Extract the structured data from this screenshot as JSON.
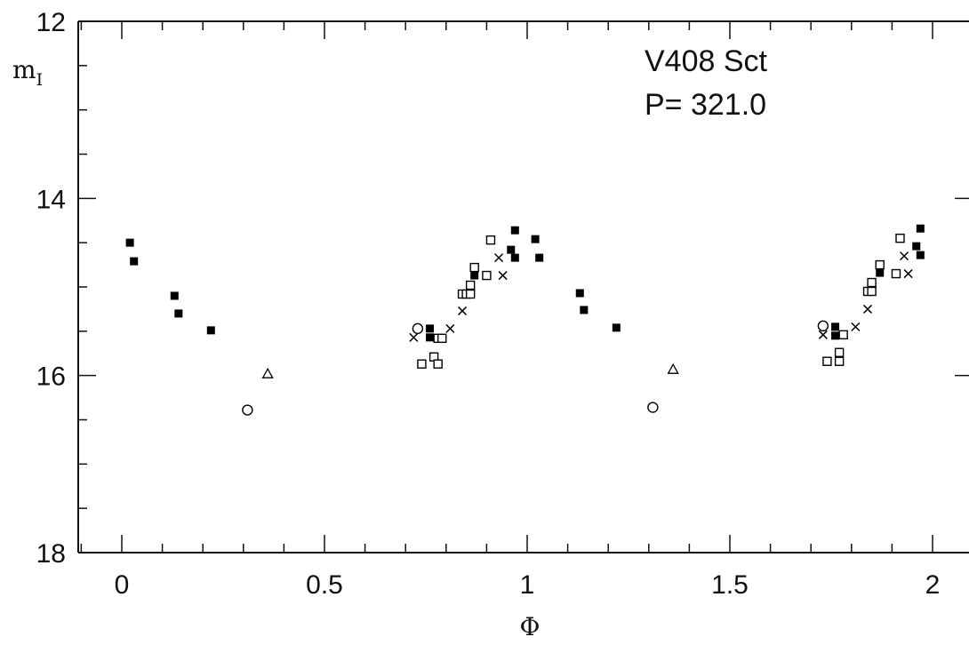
{
  "chart_data": {
    "type": "scatter",
    "title": "",
    "annotations": [
      "V408 Sct",
      "P= 321.0"
    ],
    "xlabel": "Φ",
    "ylabel": "m",
    "ylabel_subscript": "I",
    "xlim": [
      -0.1,
      2.1
    ],
    "ylim": [
      18,
      12
    ],
    "y_inverted": true,
    "grid": false,
    "legend": "none",
    "x_ticks": [
      {
        "value": 0,
        "label": "0"
      },
      {
        "value": 0.5,
        "label": "0.5"
      },
      {
        "value": 1,
        "label": "1"
      },
      {
        "value": 1.5,
        "label": "1.5"
      },
      {
        "value": 2,
        "label": "2"
      }
    ],
    "y_ticks": [
      {
        "value": 12,
        "label": "12"
      },
      {
        "value": 14,
        "label": "14"
      },
      {
        "value": 16,
        "label": "16"
      },
      {
        "value": 18,
        "label": "18"
      }
    ],
    "series": [
      {
        "marker": "filled-square",
        "points": [
          [
            0.02,
            14.5
          ],
          [
            0.03,
            14.71
          ],
          [
            0.13,
            15.1
          ],
          [
            0.14,
            15.3
          ],
          [
            0.22,
            15.49
          ],
          [
            0.76,
            15.47
          ],
          [
            0.76,
            15.57
          ],
          [
            0.87,
            14.87
          ],
          [
            0.96,
            14.58
          ],
          [
            0.97,
            14.36
          ],
          [
            0.97,
            14.67
          ],
          [
            1.02,
            14.46
          ],
          [
            1.03,
            14.67
          ],
          [
            1.13,
            15.07
          ],
          [
            1.14,
            15.26
          ],
          [
            1.22,
            15.46
          ],
          [
            1.76,
            15.45
          ],
          [
            1.76,
            15.55
          ],
          [
            1.87,
            14.84
          ],
          [
            1.96,
            14.54
          ],
          [
            1.97,
            14.34
          ],
          [
            1.97,
            14.64
          ]
        ]
      },
      {
        "marker": "open-square",
        "points": [
          [
            0.74,
            15.87
          ],
          [
            0.77,
            15.79
          ],
          [
            0.78,
            15.58
          ],
          [
            0.78,
            15.87
          ],
          [
            0.79,
            15.58
          ],
          [
            0.84,
            15.08
          ],
          [
            0.85,
            15.08
          ],
          [
            0.86,
            14.98
          ],
          [
            0.86,
            15.08
          ],
          [
            0.87,
            14.78
          ],
          [
            0.9,
            14.87
          ],
          [
            0.91,
            14.47
          ],
          [
            1.74,
            15.84
          ],
          [
            1.77,
            15.74
          ],
          [
            1.77,
            15.84
          ],
          [
            1.78,
            15.54
          ],
          [
            1.84,
            15.05
          ],
          [
            1.85,
            14.95
          ],
          [
            1.85,
            15.05
          ],
          [
            1.87,
            14.75
          ],
          [
            1.91,
            14.85
          ],
          [
            1.92,
            14.45
          ]
        ]
      },
      {
        "marker": "cross",
        "points": [
          [
            0.72,
            15.57
          ],
          [
            0.81,
            15.47
          ],
          [
            0.84,
            15.27
          ],
          [
            0.93,
            14.67
          ],
          [
            0.94,
            14.87
          ],
          [
            1.73,
            15.54
          ],
          [
            1.81,
            15.45
          ],
          [
            1.84,
            15.25
          ],
          [
            1.93,
            14.65
          ],
          [
            1.94,
            14.85
          ]
        ]
      },
      {
        "marker": "open-circle",
        "points": [
          [
            0.73,
            15.47
          ],
          [
            0.31,
            16.39
          ],
          [
            1.73,
            15.44
          ],
          [
            1.31,
            16.36
          ]
        ]
      },
      {
        "marker": "open-triangle",
        "points": [
          [
            0.36,
            15.98
          ],
          [
            1.36,
            15.93
          ]
        ]
      }
    ]
  }
}
